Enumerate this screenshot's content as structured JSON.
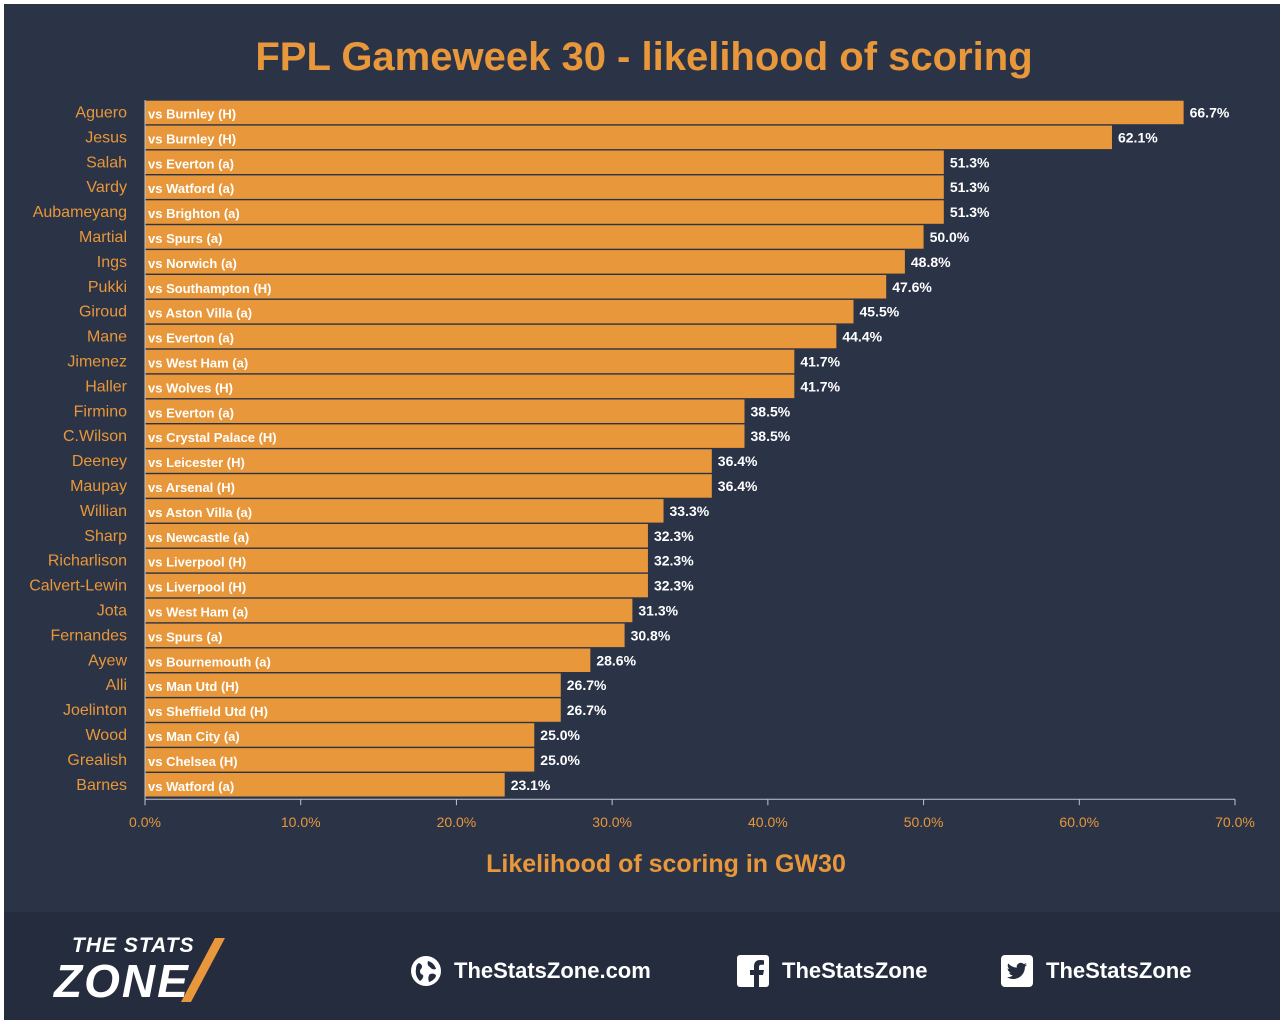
{
  "chart_data": {
    "type": "bar",
    "orientation": "horizontal",
    "title": "FPL Gameweek 30 - likelihood of scoring",
    "xlabel": "Likelihood of scoring in GW30",
    "ylabel": "",
    "xlim": [
      0,
      70
    ],
    "x_ticks": [
      "0.0%",
      "10.0%",
      "20.0%",
      "30.0%",
      "40.0%",
      "50.0%",
      "60.0%",
      "70.0%"
    ],
    "categories": [
      "Aguero",
      "Jesus",
      "Salah",
      "Vardy",
      "Aubameyang",
      "Martial",
      "Ings",
      "Pukki",
      "Giroud",
      "Mane",
      "Jimenez",
      "Haller",
      "Firmino",
      "C.Wilson",
      "Deeney",
      "Maupay",
      "Willian",
      "Sharp",
      "Richarlison",
      "Calvert-Lewin",
      "Jota",
      "Fernandes",
      "Ayew",
      "Alli",
      "Joelinton",
      "Wood",
      "Grealish",
      "Barnes"
    ],
    "values": [
      66.7,
      62.1,
      51.3,
      51.3,
      51.3,
      50.0,
      48.8,
      47.6,
      45.5,
      44.4,
      41.7,
      41.7,
      38.5,
      38.5,
      36.4,
      36.4,
      33.3,
      32.3,
      32.3,
      32.3,
      31.3,
      30.8,
      28.6,
      26.7,
      26.7,
      25.0,
      25.0,
      23.1
    ],
    "value_labels": [
      "66.7%",
      "62.1%",
      "51.3%",
      "51.3%",
      "51.3%",
      "50.0%",
      "48.8%",
      "47.6%",
      "45.5%",
      "44.4%",
      "41.7%",
      "41.7%",
      "38.5%",
      "38.5%",
      "36.4%",
      "36.4%",
      "33.3%",
      "32.3%",
      "32.3%",
      "32.3%",
      "31.3%",
      "30.8%",
      "28.6%",
      "26.7%",
      "26.7%",
      "25.0%",
      "25.0%",
      "23.1%"
    ],
    "fixtures": [
      "vs Burnley (H)",
      "vs Burnley (H)",
      "vs Everton (a)",
      "vs Watford (a)",
      "vs Brighton (a)",
      "vs Spurs (a)",
      "vs Norwich (a)",
      "vs Southampton (H)",
      "vs Aston Villa (a)",
      "vs Everton (a)",
      "vs West Ham (a)",
      "vs Wolves (H)",
      "vs Everton (a)",
      "vs Crystal Palace (H)",
      "vs Leicester (H)",
      "vs Arsenal (H)",
      "vs Aston Villa (a)",
      "vs Newcastle (a)",
      "vs Liverpool (H)",
      "vs Liverpool (H)",
      "vs West Ham (a)",
      "vs Spurs (a)",
      "vs Bournemouth (a)",
      "vs Man Utd (H)",
      "vs Sheffield Utd (H)",
      "vs Man City (a)",
      "vs Chelsea (H)",
      "vs Watford (a)"
    ],
    "grid": false,
    "legend": "none",
    "colors": {
      "bar": "#e8973a",
      "background": "#2b3347",
      "text_accent": "#e8973a",
      "value_text": "#ffffff"
    }
  },
  "footer": {
    "logo_top": "THE STATS",
    "logo_main": "ZONE",
    "website": "TheStatsZone.com",
    "facebook": "TheStatsZone",
    "twitter": "TheStatsZone",
    "icons": {
      "web": "globe-icon",
      "facebook": "facebook-icon",
      "twitter": "twitter-icon"
    },
    "colors": {
      "background": "#252c3e",
      "text": "#ffffff",
      "accent": "#e8973a"
    }
  }
}
